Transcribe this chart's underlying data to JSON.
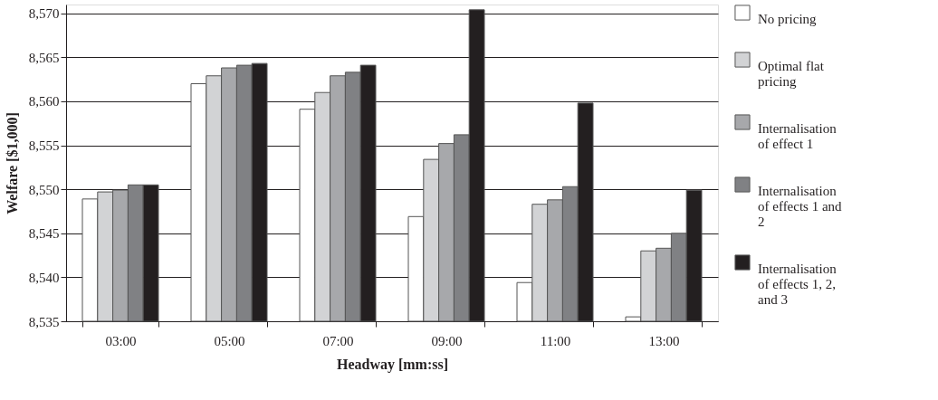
{
  "chart_data": {
    "type": "bar",
    "xlabel": "Headway [mm:ss]",
    "ylabel": "Welfare [$1,000]",
    "categories": [
      "03:00",
      "05:00",
      "07:00",
      "09:00",
      "11:00",
      "13:00"
    ],
    "series": [
      {
        "name": "No pricing",
        "color": "#ffffff",
        "values": [
          8548.9,
          8562.0,
          8559.1,
          8546.9,
          8539.4,
          8535.5
        ]
      },
      {
        "name": "Optimal flat pricing",
        "color": "#d2d3d5",
        "values": [
          8549.7,
          8562.9,
          8561.0,
          8553.4,
          8548.3,
          8543.0
        ]
      },
      {
        "name": "Internalisation of effect 1",
        "color": "#a7a8ab",
        "values": [
          8549.9,
          8563.8,
          8562.9,
          8555.2,
          8548.8,
          8543.3
        ]
      },
      {
        "name": "Internalisation of effects 1 and 2",
        "color": "#808184",
        "values": [
          8550.5,
          8564.1,
          8563.3,
          8556.2,
          8550.3,
          8545.0
        ]
      },
      {
        "name": "Internalisation of effects 1, 2, and 3",
        "color": "#231f20",
        "values": [
          8550.5,
          8564.3,
          8564.1,
          8570.4,
          8559.8,
          8549.9
        ]
      }
    ],
    "ylim": [
      8535,
      8571
    ],
    "yticks": [
      {
        "value": 8535,
        "label": "8,535"
      },
      {
        "value": 8540,
        "label": "8,540"
      },
      {
        "value": 8545,
        "label": "8,545"
      },
      {
        "value": 8550,
        "label": "8,550"
      },
      {
        "value": 8555,
        "label": "8,555"
      },
      {
        "value": 8560,
        "label": "8,560"
      },
      {
        "value": 8565,
        "label": "8,565"
      },
      {
        "value": 8570,
        "label": "8,570"
      }
    ],
    "grid": "y",
    "legend": "right"
  }
}
